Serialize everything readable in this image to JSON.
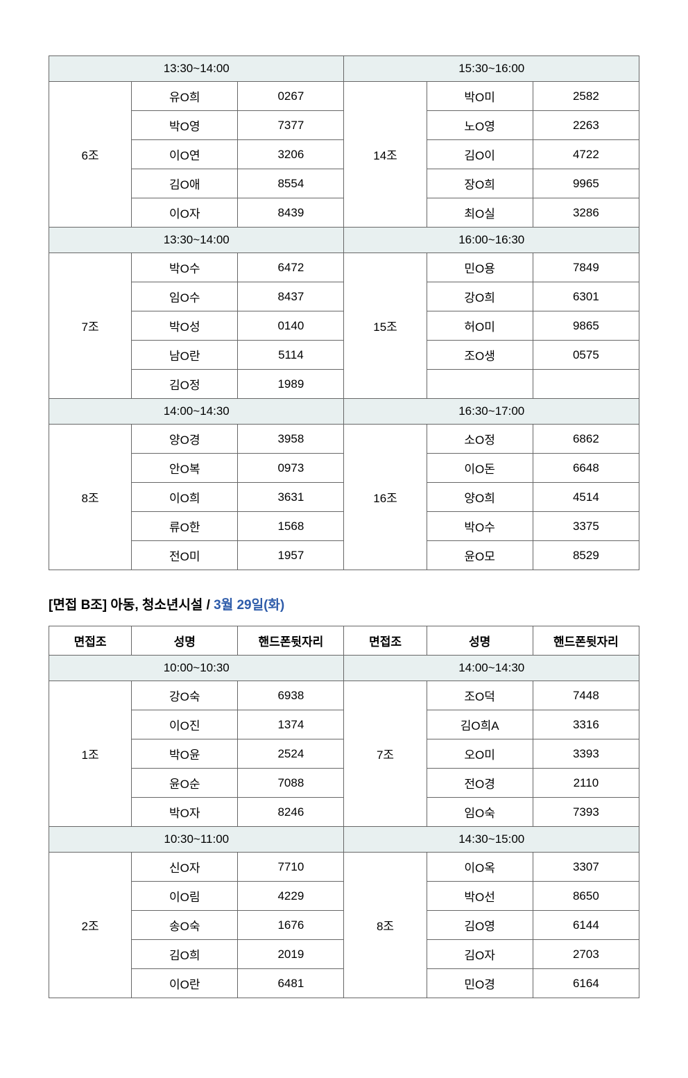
{
  "table1": {
    "blocks": [
      {
        "leftTime": "13:30~14:00",
        "rightTime": "15:30~16:00",
        "leftGroup": "6조",
        "rightGroup": "14조",
        "rows": [
          {
            "ln": "유O희",
            "lp": "0267",
            "rn": "박O미",
            "rp": "2582"
          },
          {
            "ln": "박O영",
            "lp": "7377",
            "rn": "노O영",
            "rp": "2263"
          },
          {
            "ln": "이O연",
            "lp": "3206",
            "rn": "김O이",
            "rp": "4722"
          },
          {
            "ln": "김O애",
            "lp": "8554",
            "rn": "장O희",
            "rp": "9965"
          },
          {
            "ln": "이O자",
            "lp": "8439",
            "rn": "최O실",
            "rp": "3286"
          }
        ]
      },
      {
        "leftTime": "13:30~14:00",
        "rightTime": "16:00~16:30",
        "leftGroup": "7조",
        "rightGroup": "15조",
        "rows": [
          {
            "ln": "박O수",
            "lp": "6472",
            "rn": "민O용",
            "rp": "7849"
          },
          {
            "ln": "임O수",
            "lp": "8437",
            "rn": "강O희",
            "rp": "6301"
          },
          {
            "ln": "박O성",
            "lp": "0140",
            "rn": "허O미",
            "rp": "9865"
          },
          {
            "ln": "남O란",
            "lp": "5114",
            "rn": "조O생",
            "rp": "0575"
          },
          {
            "ln": "김O정",
            "lp": "1989",
            "rn": "",
            "rp": ""
          }
        ]
      },
      {
        "leftTime": "14:00~14:30",
        "rightTime": "16:30~17:00",
        "leftGroup": "8조",
        "rightGroup": "16조",
        "rows": [
          {
            "ln": "양O경",
            "lp": "3958",
            "rn": "소O정",
            "rp": "6862"
          },
          {
            "ln": "안O복",
            "lp": "0973",
            "rn": "이O돈",
            "rp": "6648"
          },
          {
            "ln": "이O희",
            "lp": "3631",
            "rn": "양O희",
            "rp": "4514"
          },
          {
            "ln": "류O한",
            "lp": "1568",
            "rn": "박O수",
            "rp": "3375"
          },
          {
            "ln": "전O미",
            "lp": "1957",
            "rn": "윤O모",
            "rp": "8529"
          }
        ]
      }
    ]
  },
  "sectionTitle": {
    "prefix": "[면접 B조] 아동, 청소년시설 / ",
    "date": "3월 29일(화)"
  },
  "table2": {
    "headers": {
      "group": "면접조",
      "name": "성명",
      "phone": "핸드폰뒷자리"
    },
    "blocks": [
      {
        "leftTime": "10:00~10:30",
        "rightTime": "14:00~14:30",
        "leftGroup": "1조",
        "rightGroup": "7조",
        "rows": [
          {
            "ln": "강O숙",
            "lp": "6938",
            "rn": "조O덕",
            "rp": "7448"
          },
          {
            "ln": "이O진",
            "lp": "1374",
            "rn": "김O희A",
            "rp": "3316"
          },
          {
            "ln": "박O윤",
            "lp": "2524",
            "rn": "오O미",
            "rp": "3393"
          },
          {
            "ln": "윤O순",
            "lp": "7088",
            "rn": "전O경",
            "rp": "2110"
          },
          {
            "ln": "박O자",
            "lp": "8246",
            "rn": "임O숙",
            "rp": "7393"
          }
        ]
      },
      {
        "leftTime": "10:30~11:00",
        "rightTime": "14:30~15:00",
        "leftGroup": "2조",
        "rightGroup": "8조",
        "rows": [
          {
            "ln": "신O자",
            "lp": "7710",
            "rn": "이O옥",
            "rp": "3307"
          },
          {
            "ln": "이O림",
            "lp": "4229",
            "rn": "박O선",
            "rp": "8650"
          },
          {
            "ln": "송O숙",
            "lp": "1676",
            "rn": "김O영",
            "rp": "6144"
          },
          {
            "ln": "김O희",
            "lp": "2019",
            "rn": "김O자",
            "rp": "2703"
          },
          {
            "ln": "이O란",
            "lp": "6481",
            "rn": "민O경",
            "rp": "6164"
          }
        ]
      }
    ]
  },
  "colors": {
    "timeHeaderBg": "#e8f0f0",
    "border": "#666666",
    "titleBlue": "#2e5caa",
    "text": "#000000"
  }
}
